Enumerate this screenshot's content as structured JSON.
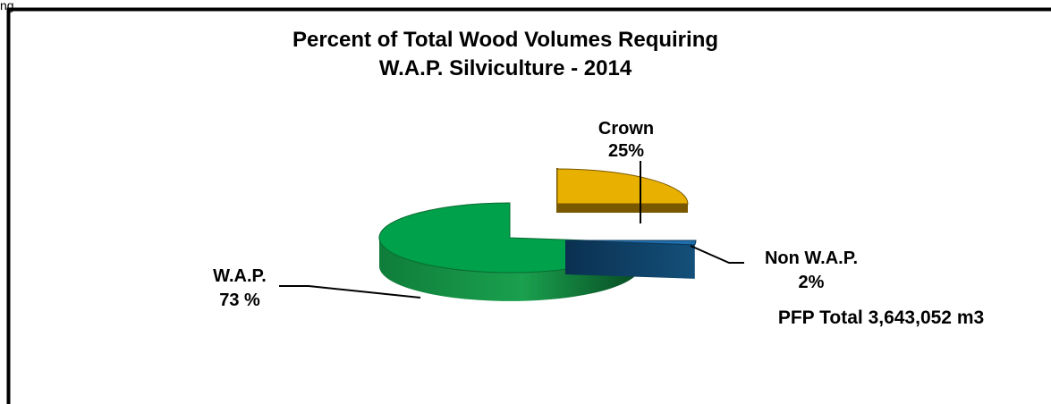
{
  "page": {
    "corner_text": "ng"
  },
  "chart_data": {
    "type": "pie",
    "title_lines": [
      "Percent of Total Wood Volumes Requiring",
      "W.A.P. Silviculture - 2014"
    ],
    "slices": [
      {
        "name": "Crown",
        "value": 25,
        "label_value": "25%",
        "color": "#e8b000",
        "side_color": "#7a5800"
      },
      {
        "name": "Non W.A.P.",
        "value": 2,
        "label_value": "2%",
        "color": "#1f6fb0",
        "side_color": "#0b3556",
        "exploded": true
      },
      {
        "name": "W.A.P.",
        "value": 73,
        "label_value": "73 %",
        "color": "#00a14b",
        "side_color": "#0a6b31"
      }
    ],
    "annotation": {
      "text": "PFP Total 3,643,052 m3",
      "color": "#c8441a"
    }
  }
}
